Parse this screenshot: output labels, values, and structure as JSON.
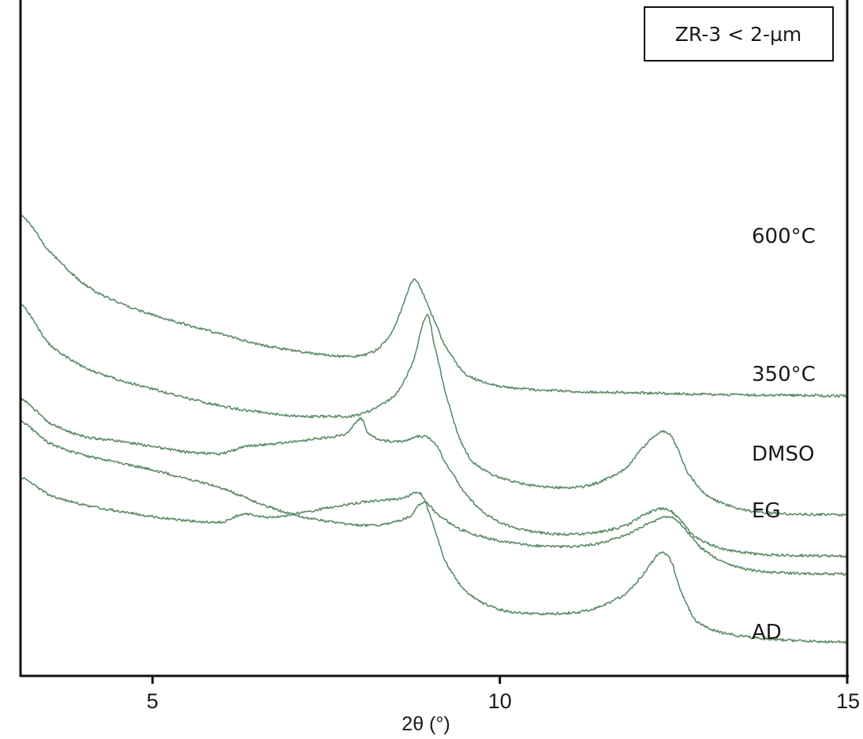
{
  "chart_data": {
    "type": "line",
    "title": "",
    "xlabel": "2θ (°)",
    "ylabel": "",
    "xlim": [
      3.1,
      15.0
    ],
    "x_ticks": [
      "5",
      "10",
      "15"
    ],
    "x_tick_values": [
      5,
      10,
      15
    ],
    "grid": false,
    "legend": {
      "text": "ZR-3 < 2-µm",
      "placement": "top-right"
    },
    "line_color": "#5f8c6a",
    "series": [
      {
        "name": "600°C",
        "points": [
          [
            3.1,
            5.85
          ],
          [
            3.5,
            5.4
          ],
          [
            4.0,
            4.98
          ],
          [
            4.5,
            4.74
          ],
          [
            5.0,
            4.58
          ],
          [
            5.5,
            4.45
          ],
          [
            6.0,
            4.33
          ],
          [
            6.5,
            4.21
          ],
          [
            7.0,
            4.13
          ],
          [
            7.5,
            4.07
          ],
          [
            7.9,
            4.05
          ],
          [
            8.2,
            4.12
          ],
          [
            8.45,
            4.35
          ],
          [
            8.6,
            4.68
          ],
          [
            8.75,
            5.02
          ],
          [
            8.85,
            4.92
          ],
          [
            9.0,
            4.62
          ],
          [
            9.2,
            4.2
          ],
          [
            9.5,
            3.83
          ],
          [
            10.0,
            3.67
          ],
          [
            11.0,
            3.61
          ],
          [
            12.0,
            3.59
          ],
          [
            13.0,
            3.57
          ],
          [
            14.0,
            3.56
          ],
          [
            15.0,
            3.55
          ]
        ]
      },
      {
        "name": "350°C",
        "points": [
          [
            3.1,
            4.72
          ],
          [
            3.5,
            4.22
          ],
          [
            4.0,
            3.92
          ],
          [
            4.5,
            3.76
          ],
          [
            5.0,
            3.64
          ],
          [
            5.5,
            3.52
          ],
          [
            6.0,
            3.42
          ],
          [
            6.5,
            3.35
          ],
          [
            7.0,
            3.3
          ],
          [
            7.5,
            3.29
          ],
          [
            8.0,
            3.32
          ],
          [
            8.5,
            3.56
          ],
          [
            8.75,
            3.98
          ],
          [
            8.95,
            4.58
          ],
          [
            9.05,
            4.22
          ],
          [
            9.2,
            3.65
          ],
          [
            9.4,
            3.06
          ],
          [
            9.6,
            2.72
          ],
          [
            9.9,
            2.55
          ],
          [
            10.3,
            2.44
          ],
          [
            10.8,
            2.39
          ],
          [
            11.3,
            2.42
          ],
          [
            11.8,
            2.62
          ],
          [
            12.1,
            2.93
          ],
          [
            12.35,
            3.1
          ],
          [
            12.5,
            2.98
          ],
          [
            12.7,
            2.58
          ],
          [
            13.0,
            2.27
          ],
          [
            13.5,
            2.11
          ],
          [
            14.0,
            2.06
          ],
          [
            15.0,
            2.04
          ]
        ]
      },
      {
        "name": "DMSO",
        "points": [
          [
            3.1,
            3.52
          ],
          [
            3.5,
            3.22
          ],
          [
            4.0,
            3.04
          ],
          [
            4.5,
            2.98
          ],
          [
            5.0,
            2.91
          ],
          [
            5.5,
            2.84
          ],
          [
            6.0,
            2.82
          ],
          [
            6.3,
            2.9
          ],
          [
            6.8,
            2.95
          ],
          [
            7.3,
            3.0
          ],
          [
            7.8,
            3.07
          ],
          [
            8.0,
            3.26
          ],
          [
            8.1,
            3.08
          ],
          [
            8.3,
            2.99
          ],
          [
            8.6,
            2.98
          ],
          [
            8.85,
            3.04
          ],
          [
            9.05,
            2.97
          ],
          [
            9.2,
            2.72
          ],
          [
            9.5,
            2.32
          ],
          [
            9.8,
            2.05
          ],
          [
            10.2,
            1.88
          ],
          [
            10.8,
            1.8
          ],
          [
            11.3,
            1.81
          ],
          [
            11.8,
            1.9
          ],
          [
            12.1,
            2.05
          ],
          [
            12.35,
            2.12
          ],
          [
            12.5,
            2.06
          ],
          [
            12.8,
            1.77
          ],
          [
            13.2,
            1.61
          ],
          [
            13.8,
            1.54
          ],
          [
            15.0,
            1.52
          ]
        ]
      },
      {
        "name": "EG",
        "points": [
          [
            3.1,
            3.23
          ],
          [
            3.5,
            2.96
          ],
          [
            4.0,
            2.8
          ],
          [
            4.5,
            2.71
          ],
          [
            5.0,
            2.61
          ],
          [
            5.5,
            2.5
          ],
          [
            6.0,
            2.38
          ],
          [
            6.5,
            2.2
          ],
          [
            7.0,
            2.05
          ],
          [
            7.5,
            1.96
          ],
          [
            8.0,
            1.91
          ],
          [
            8.4,
            1.93
          ],
          [
            8.7,
            2.02
          ],
          [
            8.9,
            2.2
          ],
          [
            9.1,
            2.05
          ],
          [
            9.4,
            1.87
          ],
          [
            9.8,
            1.75
          ],
          [
            10.3,
            1.67
          ],
          [
            10.8,
            1.64
          ],
          [
            11.3,
            1.66
          ],
          [
            11.8,
            1.78
          ],
          [
            12.2,
            1.95
          ],
          [
            12.45,
            2.02
          ],
          [
            12.6,
            1.92
          ],
          [
            12.9,
            1.62
          ],
          [
            13.3,
            1.41
          ],
          [
            13.8,
            1.32
          ],
          [
            15.0,
            1.29
          ]
        ]
      },
      {
        "name": "AD",
        "points": [
          [
            3.1,
            2.52
          ],
          [
            3.5,
            2.3
          ],
          [
            4.0,
            2.17
          ],
          [
            4.5,
            2.09
          ],
          [
            5.0,
            2.02
          ],
          [
            5.5,
            1.97
          ],
          [
            6.0,
            1.95
          ],
          [
            6.3,
            2.05
          ],
          [
            6.7,
            2.01
          ],
          [
            7.2,
            2.08
          ],
          [
            7.7,
            2.16
          ],
          [
            8.2,
            2.22
          ],
          [
            8.6,
            2.25
          ],
          [
            8.85,
            2.32
          ],
          [
            9.0,
            2.02
          ],
          [
            9.2,
            1.48
          ],
          [
            9.5,
            1.08
          ],
          [
            9.9,
            0.87
          ],
          [
            10.3,
            0.8
          ],
          [
            10.8,
            0.79
          ],
          [
            11.3,
            0.84
          ],
          [
            11.8,
            1.03
          ],
          [
            12.1,
            1.32
          ],
          [
            12.3,
            1.55
          ],
          [
            12.45,
            1.48
          ],
          [
            12.6,
            1.08
          ],
          [
            12.8,
            0.72
          ],
          [
            13.1,
            0.57
          ],
          [
            13.6,
            0.49
          ],
          [
            14.2,
            0.45
          ],
          [
            15.0,
            0.43
          ]
        ]
      }
    ]
  }
}
